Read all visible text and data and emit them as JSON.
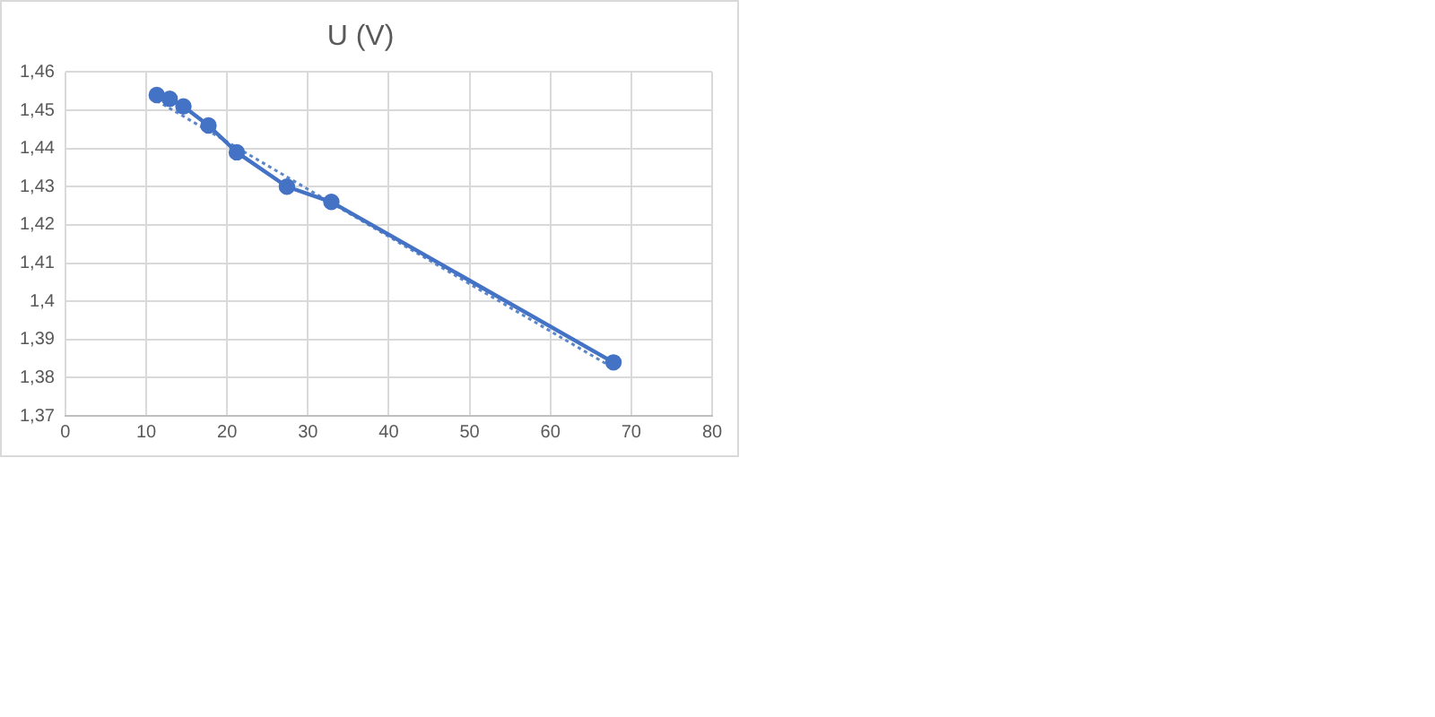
{
  "chart_data": {
    "type": "line",
    "title": "U (V)",
    "x": [
      11.3,
      12.9,
      14.6,
      17.7,
      21.2,
      27.4,
      32.9,
      67.8
    ],
    "series": [
      {
        "color": "#4472c4",
        "values": [
          1.454,
          1.453,
          1.451,
          1.446,
          1.439,
          1.43,
          1.426,
          1.384
        ],
        "marker": "circle",
        "line_style": "solid"
      },
      {
        "type": "line",
        "color": "#5b86c9",
        "x": [
          11.3,
          67.8
        ],
        "values": [
          1.4525,
          1.3825
        ],
        "marker": "none",
        "line_style": "dotted"
      }
    ],
    "xlim": [
      0,
      80
    ],
    "xticks": [
      0,
      10,
      20,
      30,
      40,
      50,
      60,
      70,
      80
    ],
    "ylim": [
      1.37,
      1.46
    ],
    "yticks": [
      {
        "value": 1.37,
        "label": "1,37"
      },
      {
        "value": 1.38,
        "label": "1,38"
      },
      {
        "value": 1.39,
        "label": "1,39"
      },
      {
        "value": 1.4,
        "label": "1,4"
      },
      {
        "value": 1.41,
        "label": "1,41"
      },
      {
        "value": 1.42,
        "label": "1,42"
      },
      {
        "value": 1.43,
        "label": "1,43"
      },
      {
        "value": 1.44,
        "label": "1,44"
      },
      {
        "value": 1.45,
        "label": "1,45"
      },
      {
        "value": 1.46,
        "label": "1,46"
      }
    ],
    "grid": true,
    "legend": false
  }
}
